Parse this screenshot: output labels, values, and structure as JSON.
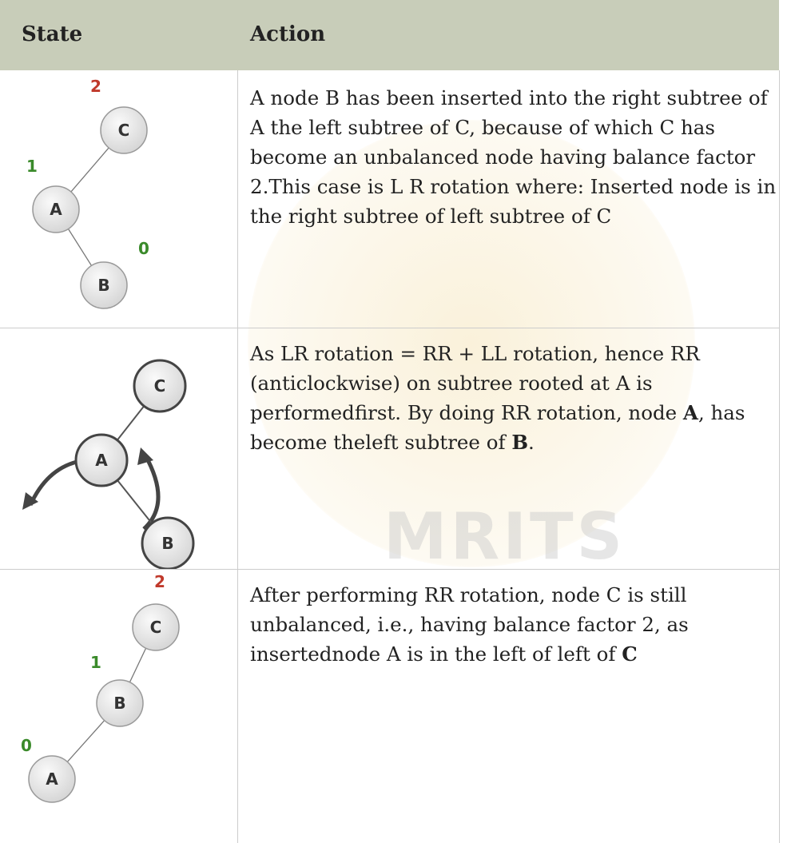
{
  "table": {
    "headers": [
      "State",
      "Action"
    ],
    "rows": [
      {
        "state": {
          "nodes": [
            {
              "label": "C",
              "balance": 2
            },
            {
              "label": "A",
              "balance": 1
            },
            {
              "label": "B",
              "balance": 0
            }
          ]
        },
        "action": [
          "A node B has been inserted into the right subtree of A the left subtree of C, because of which C has become an unbalanced node having balance factor 2.This case is L R rotation where: Inserted node is in the right subtree of left subtree of C"
        ]
      },
      {
        "state": {
          "nodes": [
            {
              "label": "C"
            },
            {
              "label": "A"
            },
            {
              "label": "B"
            }
          ]
        },
        "action": [
          "As LR rotation = RR + LL rotation, hence RR (anticlockwise) on subtree rooted at A is performedfirst. By doing RR rotation, node ",
          "A",
          ", has become theleft subtree of ",
          "B",
          "."
        ]
      },
      {
        "state": {
          "nodes": [
            {
              "label": "C",
              "balance": 2
            },
            {
              "label": "B",
              "balance": 1
            },
            {
              "label": "A",
              "balance": 0
            }
          ]
        },
        "action": [
          "After performing RR rotation, node C is still unbalanced, i.e., having balance factor 2, as insertednode A is in the left of left of ",
          "C"
        ]
      }
    ]
  },
  "watermark": "MRITS"
}
